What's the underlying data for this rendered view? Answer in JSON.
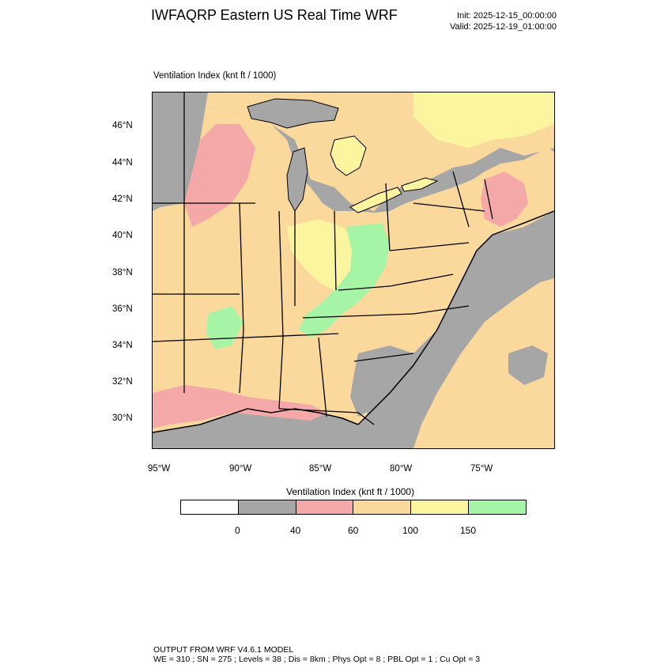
{
  "header": {
    "title": "IWFAQRP Eastern US Real Time WRF",
    "init": "Init: 2025-12-15_00:00:00",
    "valid": "Valid: 2025-12-19_01:00:00"
  },
  "map": {
    "caption": "Ventilation Index   (knt ft / 1000)",
    "lat_ticks": [
      "46°N",
      "44°N",
      "42°N",
      "40°N",
      "38°N",
      "36°N",
      "34°N",
      "32°N",
      "30°N"
    ],
    "lon_ticks": [
      "95°W",
      "90°W",
      "85°W",
      "80°W",
      "75°W"
    ],
    "colors": {
      "land_gray": "#a6a6a6",
      "red": "#f4a8a8",
      "orange": "#fbd89c",
      "yellow": "#fbf5a0",
      "green": "#a6f5a6",
      "ocean_gray": "#a6a6a6",
      "boundary": "#000000"
    }
  },
  "colorbar": {
    "title": "Ventilation Index  (knt ft / 1000)",
    "colors": [
      "#ffffff",
      "#a6a6a6",
      "#f4a8a8",
      "#fbd89c",
      "#fbf5a0",
      "#a6f5a6"
    ],
    "labels": [
      "0",
      "40",
      "60",
      "100",
      "150"
    ]
  },
  "footer": {
    "model": "OUTPUT FROM WRF V4.6.1 MODEL",
    "params": "WE = 310 ; SN = 275 ; Levels = 38 ; Dis = 8km ; Phys Opt = 8 ; PBL Opt = 1 ; Cu Opt = 3"
  }
}
